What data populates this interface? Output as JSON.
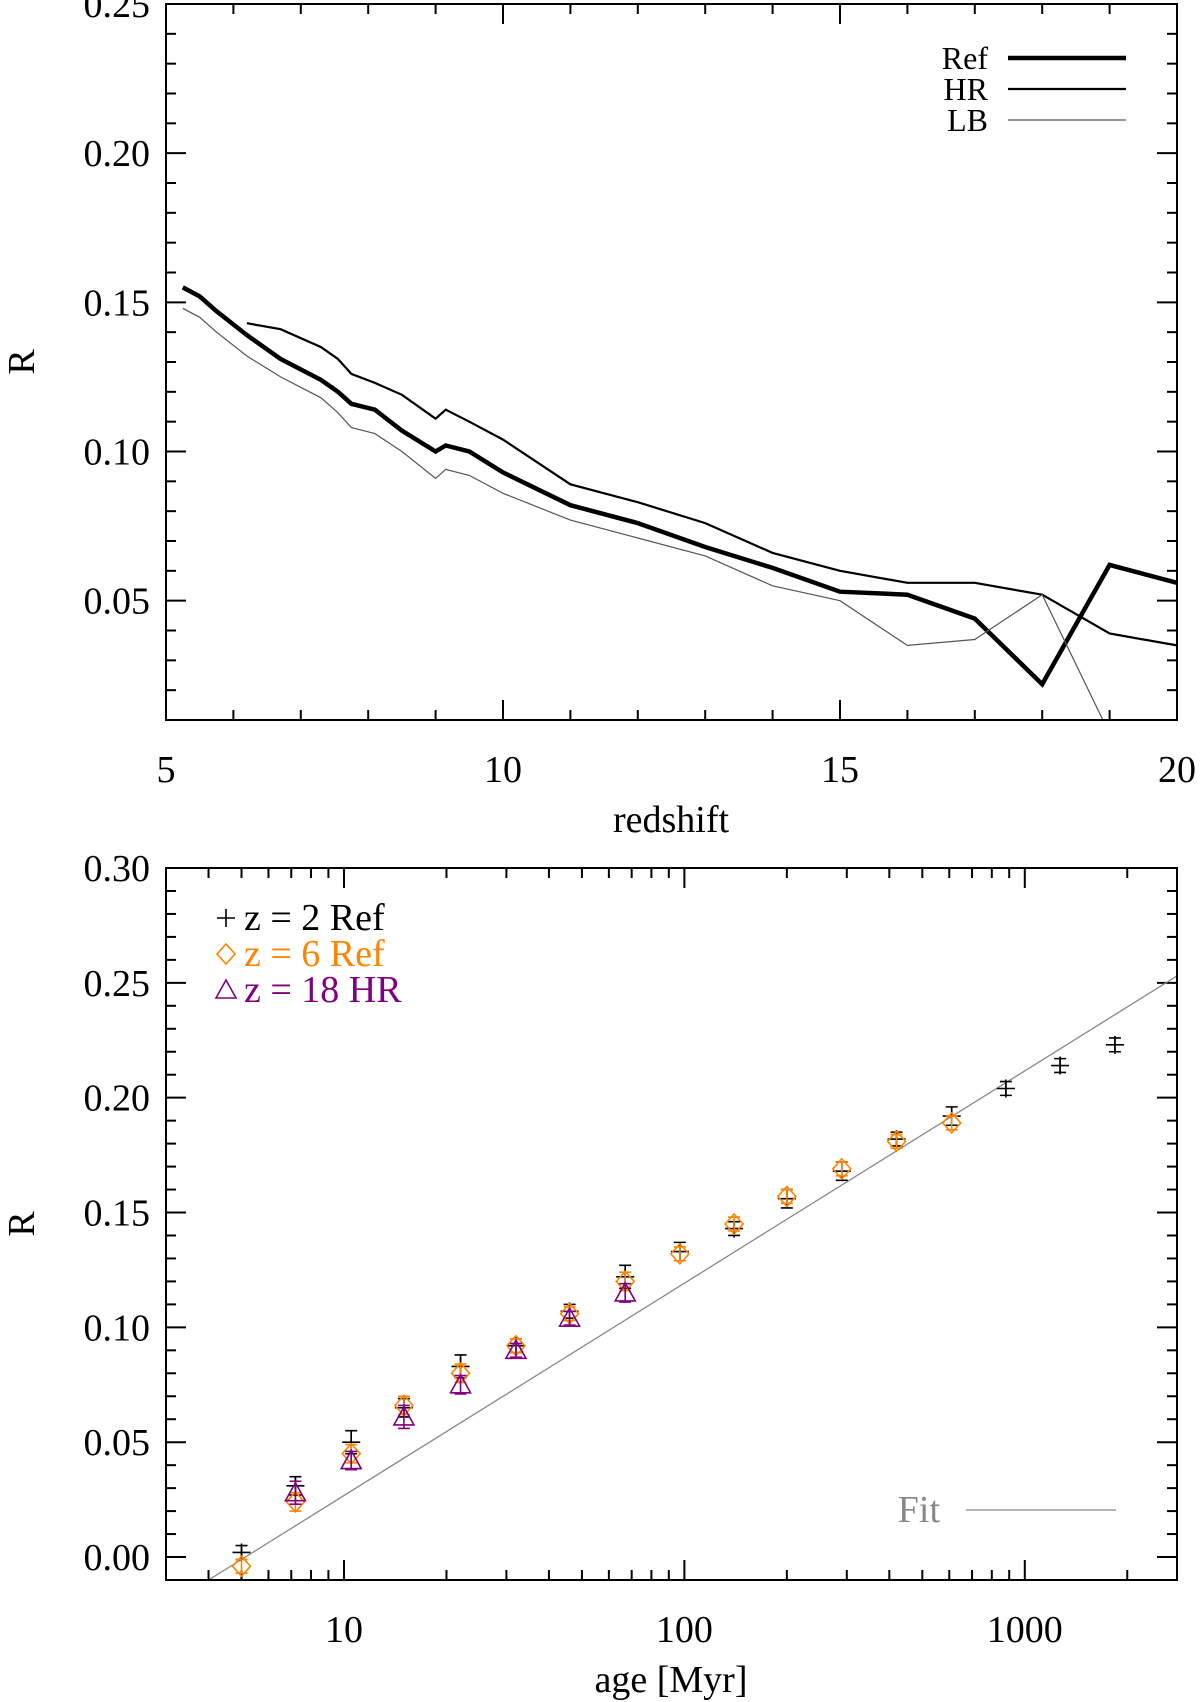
{
  "chart_data": [
    {
      "type": "line",
      "xlabel": "redshift",
      "ylabel": "R",
      "xlim": [
        5,
        20
      ],
      "ylim": [
        0.01,
        0.25
      ],
      "xticks": [
        5,
        10,
        15,
        20
      ],
      "xtick_labels": [
        "5",
        "10",
        "15",
        "20"
      ],
      "yticks": [
        0.05,
        0.1,
        0.15,
        0.2,
        0.25
      ],
      "ytick_labels": [
        "0.05",
        "0.10",
        "0.15",
        "0.20",
        "0.25"
      ],
      "legend_position": "top-right",
      "series": [
        {
          "name": "Ref",
          "color": "#000000",
          "weight": "thick",
          "x": [
            5.25,
            5.5,
            5.75,
            6.2,
            6.7,
            7.3,
            7.55,
            7.75,
            8.1,
            8.5,
            9.0,
            9.15,
            9.5,
            10.0,
            11.0,
            12.0,
            13.0,
            14.0,
            15.0,
            16.0,
            17.0,
            18.0,
            19.0,
            20.0
          ],
          "y": [
            0.155,
            0.152,
            0.147,
            0.139,
            0.131,
            0.124,
            0.12,
            0.116,
            0.114,
            0.107,
            0.1,
            0.102,
            0.1,
            0.093,
            0.082,
            0.076,
            0.068,
            0.061,
            0.053,
            0.052,
            0.044,
            0.022,
            0.062,
            0.056
          ]
        },
        {
          "name": "HR",
          "color": "#000000",
          "weight": "medium",
          "x": [
            6.2,
            6.7,
            7.3,
            7.55,
            7.75,
            8.1,
            8.5,
            9.0,
            9.15,
            9.5,
            10.0,
            11.0,
            12.0,
            13.0,
            14.0,
            15.0,
            16.0,
            17.0,
            18.0,
            19.0,
            20.0
          ],
          "y": [
            0.143,
            0.141,
            0.135,
            0.131,
            0.126,
            0.123,
            0.119,
            0.111,
            0.114,
            0.11,
            0.104,
            0.089,
            0.083,
            0.076,
            0.066,
            0.06,
            0.056,
            0.056,
            0.052,
            0.039,
            0.035
          ]
        },
        {
          "name": "LB",
          "color": "#555555",
          "weight": "thin",
          "x": [
            5.25,
            5.5,
            5.75,
            6.2,
            6.7,
            7.3,
            7.55,
            7.75,
            8.1,
            8.5,
            9.0,
            9.15,
            9.5,
            10.0,
            11.0,
            12.0,
            13.0,
            14.0,
            15.0,
            16.0,
            17.0,
            18.0,
            18.9
          ],
          "y": [
            0.148,
            0.145,
            0.14,
            0.132,
            0.125,
            0.118,
            0.113,
            0.108,
            0.106,
            0.1,
            0.091,
            0.094,
            0.092,
            0.086,
            0.077,
            0.071,
            0.065,
            0.055,
            0.05,
            0.035,
            0.037,
            0.052,
            0.01
          ]
        }
      ]
    },
    {
      "type": "scatter",
      "xlabel": "age [Myr]",
      "ylabel": "R",
      "xscale": "log",
      "xlim": [
        3,
        2800
      ],
      "ylim": [
        -0.01,
        0.3
      ],
      "xticks": [
        10,
        100,
        1000
      ],
      "xtick_labels": [
        "10",
        "100",
        "1000"
      ],
      "yticks": [
        0.0,
        0.05,
        0.1,
        0.15,
        0.2,
        0.25,
        0.3
      ],
      "ytick_labels": [
        "0.00",
        "0.05",
        "0.10",
        "0.15",
        "0.20",
        "0.25",
        "0.30"
      ],
      "legend_position": "top-left",
      "series": [
        {
          "name": "z = 2 Ref",
          "color": "#000000",
          "marker": "plus",
          "x": [
            5,
            7.2,
            10.5,
            15,
            22,
            32,
            46,
            67,
            97,
            140,
            200,
            290,
            420,
            610,
            880,
            1270,
            1840
          ],
          "y": [
            0.002,
            0.031,
            0.05,
            0.065,
            0.083,
            0.092,
            0.107,
            0.122,
            0.133,
            0.143,
            0.156,
            0.168,
            0.182,
            0.192,
            0.204,
            0.214,
            0.223
          ],
          "err": [
            0.003,
            0.004,
            0.005,
            0.004,
            0.005,
            0.003,
            0.003,
            0.005,
            0.004,
            0.003,
            0.004,
            0.004,
            0.003,
            0.004,
            0.003,
            0.003,
            0.003
          ]
        },
        {
          "name": "z = 6 Ref",
          "color": "#ff8400",
          "marker": "diamond",
          "x": [
            5,
            7.2,
            10.5,
            15,
            22,
            32,
            46,
            67,
            97,
            140,
            200,
            290,
            420,
            610
          ],
          "y": [
            -0.004,
            0.024,
            0.045,
            0.066,
            0.08,
            0.092,
            0.106,
            0.12,
            0.132,
            0.145,
            0.157,
            0.169,
            0.181,
            0.189
          ],
          "err": [
            0.003,
            0.004,
            0.004,
            0.004,
            0.004,
            0.003,
            0.003,
            0.004,
            0.003,
            0.003,
            0.003,
            0.003,
            0.003,
            0.003
          ]
        },
        {
          "name": "z = 18 HR",
          "color": "#800080",
          "marker": "triangle",
          "x": [
            7.2,
            10.5,
            15,
            22,
            32,
            46,
            67
          ],
          "y": [
            0.028,
            0.042,
            0.061,
            0.075,
            0.09,
            0.104,
            0.115
          ],
          "err": [
            0.005,
            0.004,
            0.005,
            0.004,
            0.003,
            0.003,
            0.004
          ]
        }
      ],
      "fit": {
        "name": "Fit",
        "color": "#888888",
        "x": [
          4,
          2800
        ],
        "y": [
          -0.01,
          0.253
        ]
      }
    }
  ]
}
